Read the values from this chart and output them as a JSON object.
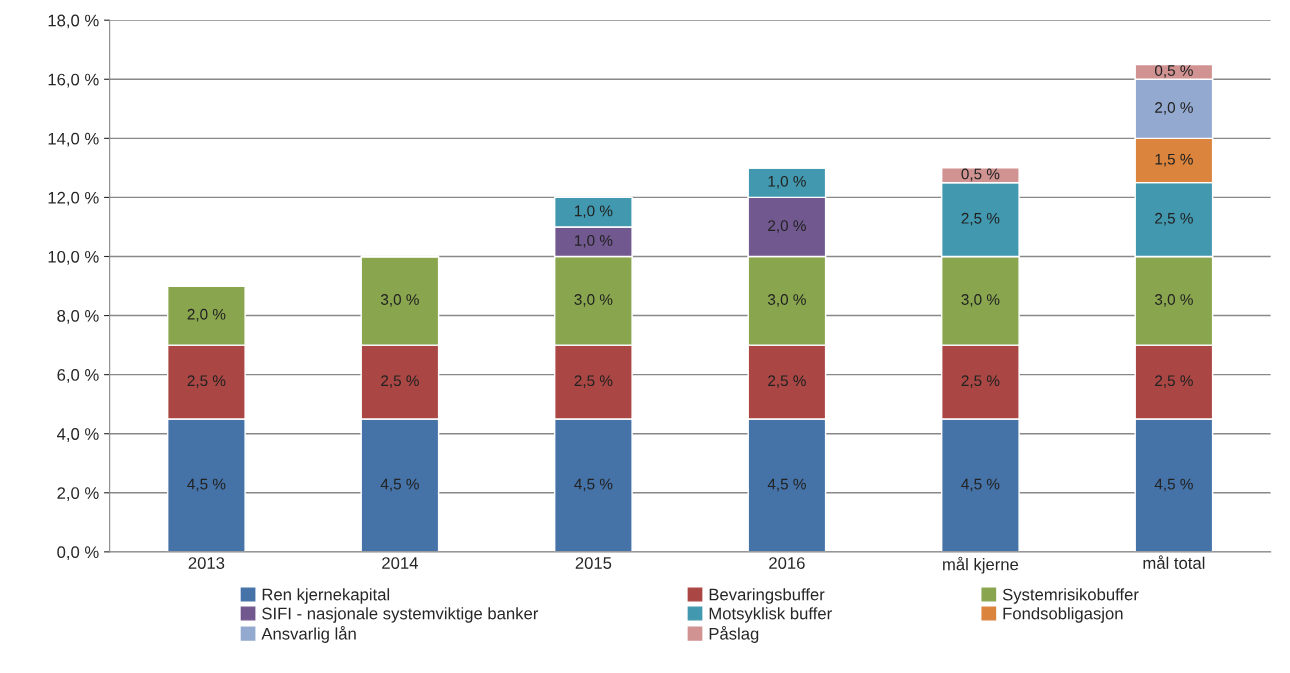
{
  "chart_data": {
    "type": "bar",
    "stacked": true,
    "categories": [
      "2013",
      "2014",
      "2015",
      "2016",
      "mål kjerne",
      "mål total"
    ],
    "series": [
      {
        "name": "Ren kjernekapital",
        "color": "#4572a7",
        "values": [
          4.5,
          4.5,
          4.5,
          4.5,
          4.5,
          4.5
        ],
        "value_labels": [
          "4,5 %",
          "4,5 %",
          "4,5 %",
          "4,5 %",
          "4,5 %",
          "4,5 %"
        ]
      },
      {
        "name": "Bevaringsbuffer",
        "color": "#aa4643",
        "values": [
          2.5,
          2.5,
          2.5,
          2.5,
          2.5,
          2.5
        ],
        "value_labels": [
          "2,5 %",
          "2,5 %",
          "2,5 %",
          "2,5 %",
          "2,5 %",
          "2,5 %"
        ]
      },
      {
        "name": "Systemrisikobuffer",
        "color": "#89a54e",
        "values": [
          2.0,
          3.0,
          3.0,
          3.0,
          3.0,
          3.0
        ],
        "value_labels": [
          "2,0 %",
          "3,0 %",
          "3,0 %",
          "3,0 %",
          "3,0 %",
          "3,0 %"
        ]
      },
      {
        "name": "SIFI - nasjonale systemviktige banker",
        "color": "#71588f",
        "values": [
          null,
          null,
          1.0,
          2.0,
          null,
          null
        ],
        "value_labels": [
          null,
          null,
          "1,0 %",
          "2,0 %",
          null,
          null
        ]
      },
      {
        "name": "Motsyklisk buffer",
        "color": "#4198af",
        "values": [
          null,
          null,
          1.0,
          1.0,
          2.5,
          2.5
        ],
        "value_labels": [
          null,
          null,
          "1,0 %",
          "1,0 %",
          "2,5 %",
          "2,5 %"
        ]
      },
      {
        "name": "Fondsobligasjon",
        "color": "#db843d",
        "values": [
          null,
          null,
          null,
          null,
          null,
          1.5
        ],
        "value_labels": [
          null,
          null,
          null,
          null,
          null,
          "1,5 %"
        ]
      },
      {
        "name": "Ansvarlig lån",
        "color": "#93a9cf",
        "values": [
          null,
          null,
          null,
          null,
          null,
          2.0
        ],
        "value_labels": [
          null,
          null,
          null,
          null,
          null,
          "2,0 %"
        ]
      },
      {
        "name": "Påslag",
        "color": "#d19392",
        "values": [
          null,
          null,
          null,
          null,
          0.5,
          0.5
        ],
        "value_labels": [
          null,
          null,
          null,
          null,
          "0,5 %",
          "0,5 %"
        ]
      }
    ],
    "ylim": [
      0,
      18
    ],
    "yticks": [
      {
        "value": 0,
        "label": "0,0 %"
      },
      {
        "value": 2,
        "label": "2,0 %"
      },
      {
        "value": 4,
        "label": "4,0 %"
      },
      {
        "value": 6,
        "label": "6,0 %"
      },
      {
        "value": 8,
        "label": "8,0 %"
      },
      {
        "value": 10,
        "label": "10,0 %"
      },
      {
        "value": 12,
        "label": "12,0 %"
      },
      {
        "value": 14,
        "label": "14,0 %"
      },
      {
        "value": 16,
        "label": "16,0 %"
      },
      {
        "value": 18,
        "label": "18,0 %"
      }
    ],
    "grid": "y",
    "legend": "bottom"
  }
}
